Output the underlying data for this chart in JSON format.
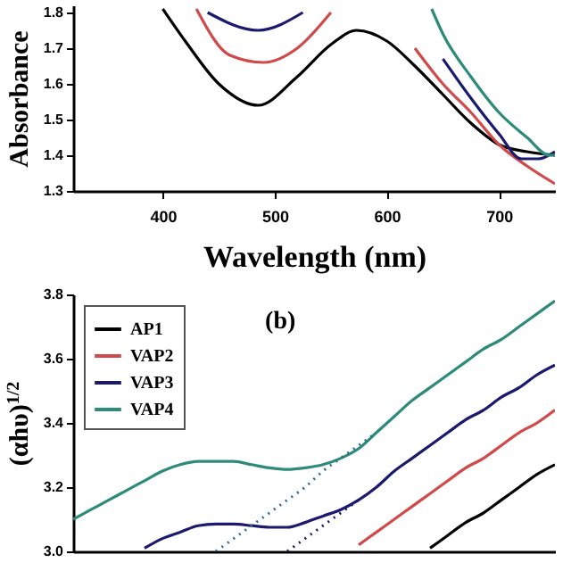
{
  "chart_data": [
    {
      "type": "line",
      "xlabel": "Wavelength (nm)",
      "ylabel": "Absorbance",
      "xlim": [
        320,
        750
      ],
      "xticks": [
        400,
        500,
        600,
        700
      ],
      "ylim": [
        1.3,
        1.82
      ],
      "yticks": [
        1.3,
        1.4,
        1.5,
        1.6,
        1.7,
        1.8
      ],
      "legend": false,
      "series": [
        {
          "color": "#000000",
          "x": [
            400,
            420,
            450,
            485,
            520,
            550,
            573,
            600,
            625,
            650,
            675,
            700,
            725,
            750
          ],
          "values": [
            1.81,
            1.72,
            1.6,
            1.54,
            1.62,
            1.71,
            1.75,
            1.72,
            1.65,
            1.57,
            1.49,
            1.43,
            1.41,
            1.4
          ]
        },
        {
          "color": "#d04a4a",
          "x": [
            430,
            460,
            490,
            520,
            550,
            600,
            625,
            650,
            675,
            700,
            725,
            750
          ],
          "values": [
            1.81,
            1.68,
            1.66,
            1.7,
            1.8,
            null,
            1.7,
            1.6,
            1.52,
            1.43,
            1.37,
            1.32
          ]
        },
        {
          "color": "#1a1a6e",
          "x": [
            440,
            485,
            525,
            626,
            650,
            675,
            700,
            720,
            735,
            750
          ],
          "values": [
            1.8,
            1.75,
            1.8,
            null,
            1.67,
            1.56,
            1.46,
            1.39,
            1.39,
            1.41
          ]
        },
        {
          "color": "#2e8b7a",
          "x": [
            640,
            650,
            675,
            700,
            725,
            745,
            750
          ],
          "values": [
            1.81,
            1.74,
            1.62,
            1.52,
            1.45,
            1.4,
            1.4
          ]
        }
      ]
    },
    {
      "type": "line",
      "ylabel": "(αhυ)$^{1/2}$",
      "categories": [
        null,
        null,
        null,
        null,
        null,
        null,
        null,
        null,
        null,
        null,
        null,
        null,
        null,
        null,
        null,
        null,
        null,
        null,
        null,
        null,
        null,
        null,
        null,
        null,
        null,
        null,
        null,
        null
      ],
      "ylim": [
        3.0,
        3.8
      ],
      "yticks": [
        {
          "value": 3.0,
          "label": "3.0"
        },
        3.2,
        3.4,
        3.6,
        3.8
      ],
      "tick_labels": "y",
      "legend": "top left",
      "annotations": [
        "(b)"
      ],
      "series": [
        {
          "name": "AP1",
          "color": "#000000",
          "values": [
            null,
            null,
            null,
            null,
            null,
            null,
            null,
            null,
            null,
            null,
            null,
            null,
            null,
            null,
            null,
            null,
            null,
            null,
            null,
            null,
            3.01,
            3.05,
            3.09,
            3.12,
            3.16,
            3.2,
            3.24,
            3.27
          ]
        },
        {
          "name": "VAP2",
          "color": "#d04a4a",
          "values": [
            null,
            null,
            null,
            null,
            null,
            null,
            null,
            null,
            null,
            null,
            null,
            null,
            null,
            null,
            null,
            null,
            3.02,
            3.06,
            3.1,
            3.14,
            3.18,
            3.22,
            3.26,
            3.29,
            3.33,
            3.37,
            3.4,
            3.44
          ]
        },
        {
          "name": "VAP3",
          "color": "#1a1a6e",
          "values": [
            null,
            null,
            null,
            null,
            3.01,
            3.04,
            3.06,
            3.08,
            3.085,
            3.085,
            3.08,
            3.075,
            3.075,
            3.09,
            3.11,
            3.13,
            3.16,
            3.2,
            3.25,
            3.29,
            3.33,
            3.37,
            3.41,
            3.44,
            3.48,
            3.51,
            3.55,
            3.58
          ]
        },
        {
          "name": "VAP4",
          "color": "#2e8b7a",
          "values": [
            3.1,
            3.13,
            3.16,
            3.19,
            3.22,
            3.25,
            3.27,
            3.28,
            3.28,
            3.28,
            3.27,
            3.26,
            3.255,
            3.26,
            3.27,
            3.29,
            3.32,
            3.37,
            3.42,
            3.47,
            3.51,
            3.55,
            3.59,
            3.63,
            3.66,
            3.7,
            3.74,
            3.78
          ]
        },
        {
          "type": "line",
          "line_style": "dotted",
          "color": "#2e6f8e",
          "values": [
            null,
            null,
            null,
            null,
            null,
            null,
            null,
            null,
            3.0,
            3.04,
            3.08,
            3.12,
            3.16,
            3.2,
            3.25,
            3.29,
            3.33,
            3.37,
            null,
            null,
            null,
            null,
            null,
            null,
            null,
            null,
            null,
            null
          ]
        },
        {
          "type": "line",
          "line_style": "dotted",
          "color": "#1a1a6e",
          "values": [
            null,
            null,
            null,
            null,
            null,
            null,
            null,
            null,
            null,
            null,
            null,
            null,
            3.0,
            3.04,
            3.08,
            3.12,
            3.16,
            null,
            null,
            null,
            null,
            null,
            null,
            null,
            null,
            null,
            null,
            null
          ]
        }
      ]
    }
  ]
}
